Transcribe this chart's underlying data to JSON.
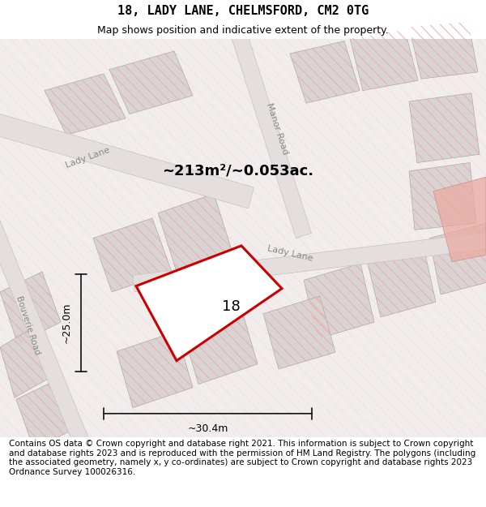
{
  "title": "18, LADY LANE, CHELMSFORD, CM2 0TG",
  "subtitle": "Map shows position and indicative extent of the property.",
  "footer": "Contains OS data © Crown copyright and database right 2021. This information is subject to Crown copyright and database rights 2023 and is reproduced with the permission of HM Land Registry. The polygons (including the associated geometry, namely x, y co-ordinates) are subject to Crown copyright and database rights 2023 Ordnance Survey 100026316.",
  "area_label": "~213m²/~0.053ac.",
  "width_label": "~30.4m",
  "height_label": "~25.0m",
  "number_label": "18",
  "map_bg": "#f2eded",
  "road_color": "#e4dede",
  "road_ec": "#c8c0c0",
  "block_fc": "#d8d4d4",
  "block_ec": "#aaaaaa",
  "stripe_color": "#f0aaaa",
  "bg_stripe_color": "#f5c8c8",
  "plot_ec": "#cc0000",
  "plot_fc": "white",
  "dim_color": "#111111",
  "road_label_color": "#888888",
  "pink_area_color": "#eaaaa0",
  "title_fontsize": 11,
  "subtitle_fontsize": 9,
  "footer_fontsize": 7.5,
  "area_fontsize": 13,
  "num_fontsize": 13,
  "road_label_fontsize": 8,
  "bouverie_fontsize": 7.5,
  "dim_fontsize": 9
}
